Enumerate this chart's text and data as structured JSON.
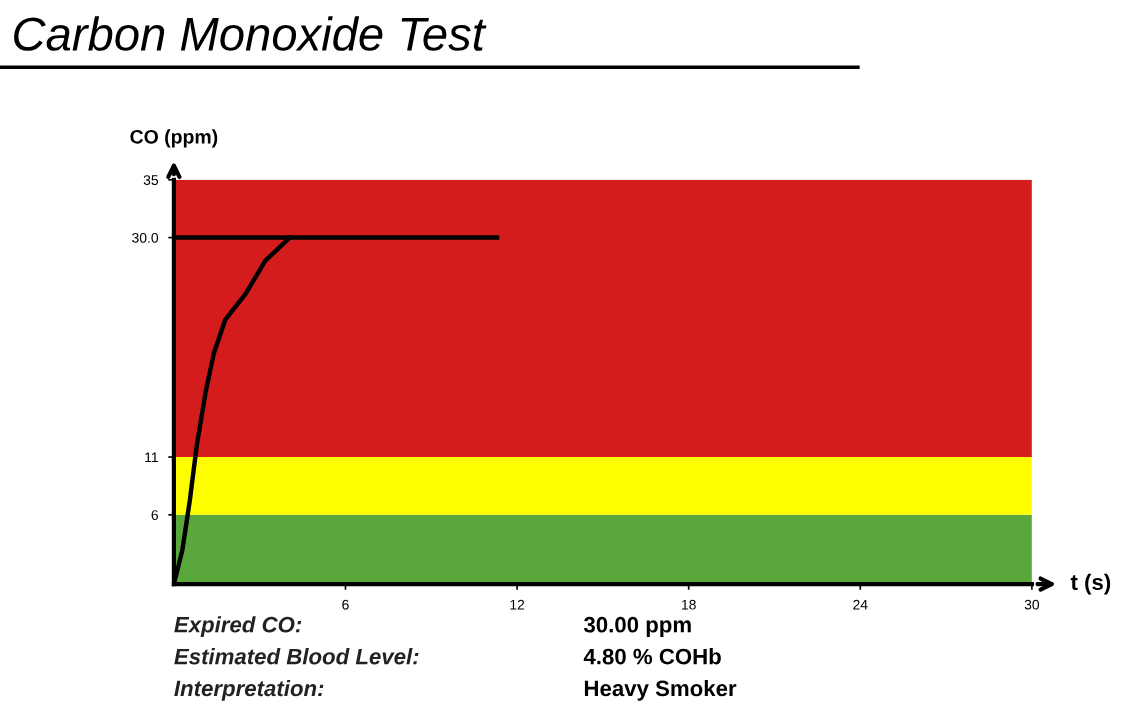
{
  "chart_data": {
    "type": "line",
    "title": "Carbon Monoxide Test",
    "xlabel": "t (s)",
    "ylabel": "CO (ppm)",
    "xlim": [
      0,
      30
    ],
    "xticks": [
      6,
      12,
      18,
      24,
      30
    ],
    "ylim": [
      0,
      35
    ],
    "yticks": [
      6,
      11,
      {
        "value": 30,
        "label": "30.0"
      },
      35
    ],
    "series": [
      {
        "color": "#000000",
        "x": [
          0,
          0.3,
          0.56,
          0.8,
          1.1,
          1.4,
          1.8,
          2.5,
          3.2,
          4.05,
          11.3
        ],
        "values": [
          0,
          3,
          7.3,
          12,
          16.5,
          20,
          22.9,
          25.1,
          28,
          30,
          30
        ]
      },
      {
        "color": "#000000",
        "x": [
          0,
          4.05
        ],
        "values": [
          30,
          30
        ]
      }
    ],
    "bands": [
      {
        "axis": "y",
        "from": 0,
        "to": 6,
        "color": "#5aa83c"
      },
      {
        "axis": "y",
        "from": 6,
        "to": 11,
        "color": "#ffff00"
      },
      {
        "axis": "y",
        "from": 11,
        "to": 35,
        "color": "#d41c1c"
      }
    ],
    "grid": false,
    "legend": false,
    "annotations": [
      "Expired CO:",
      "30.00 ppm",
      "Estimated Blood Level:",
      "4.80 % COHb",
      "Interpretation:",
      "Heavy Smoker"
    ]
  }
}
